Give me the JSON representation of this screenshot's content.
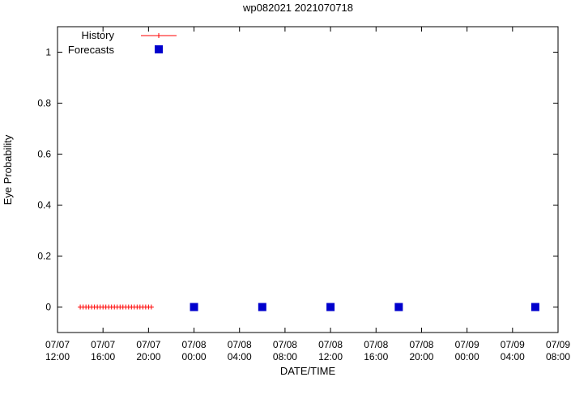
{
  "window": {
    "title": "wp082021 2021070718"
  },
  "chart_data": {
    "type": "scatter",
    "title": "wp082021 2021070718",
    "xlabel": "DATE/TIME",
    "ylabel": "Eye Probability",
    "grid": false,
    "legend_position": "top-left-inside",
    "x_axis": {
      "start": "07/07 12:00",
      "end": "07/09 08:00",
      "hours_range": [
        0,
        44
      ],
      "ticks": [
        {
          "hours": 0,
          "date": "07/07",
          "time": "12:00"
        },
        {
          "hours": 4,
          "date": "07/07",
          "time": "16:00"
        },
        {
          "hours": 8,
          "date": "07/07",
          "time": "20:00"
        },
        {
          "hours": 12,
          "date": "07/08",
          "time": "00:00"
        },
        {
          "hours": 16,
          "date": "07/08",
          "time": "04:00"
        },
        {
          "hours": 20,
          "date": "07/08",
          "time": "08:00"
        },
        {
          "hours": 24,
          "date": "07/08",
          "time": "12:00"
        },
        {
          "hours": 28,
          "date": "07/08",
          "time": "16:00"
        },
        {
          "hours": 32,
          "date": "07/08",
          "time": "20:00"
        },
        {
          "hours": 36,
          "date": "07/09",
          "time": "00:00"
        },
        {
          "hours": 40,
          "date": "07/09",
          "time": "04:00"
        },
        {
          "hours": 44,
          "date": "07/09",
          "time": "08:00"
        }
      ]
    },
    "y_axis": {
      "range": [
        -0.1,
        1.1
      ],
      "ticks": [
        {
          "value": 0,
          "label": "0"
        },
        {
          "value": 0.2,
          "label": "0.2"
        },
        {
          "value": 0.4,
          "label": "0.4"
        },
        {
          "value": 0.6,
          "label": "0.6"
        },
        {
          "value": 0.8,
          "label": "0.8"
        },
        {
          "value": 1,
          "label": "1"
        }
      ]
    },
    "series": [
      {
        "name": "History",
        "style": "linespoints",
        "marker": "plus",
        "color": "#ff0000",
        "points": [
          {
            "time": "07/07 14:00",
            "hours": 2.0,
            "value": 0
          },
          {
            "time": "07/07 14:15",
            "hours": 2.25,
            "value": 0
          },
          {
            "time": "07/07 14:30",
            "hours": 2.5,
            "value": 0
          },
          {
            "time": "07/07 14:45",
            "hours": 2.75,
            "value": 0
          },
          {
            "time": "07/07 15:00",
            "hours": 3.0,
            "value": 0
          },
          {
            "time": "07/07 15:15",
            "hours": 3.25,
            "value": 0
          },
          {
            "time": "07/07 15:30",
            "hours": 3.5,
            "value": 0
          },
          {
            "time": "07/07 15:45",
            "hours": 3.75,
            "value": 0
          },
          {
            "time": "07/07 16:00",
            "hours": 4.0,
            "value": 0
          },
          {
            "time": "07/07 16:15",
            "hours": 4.25,
            "value": 0
          },
          {
            "time": "07/07 16:30",
            "hours": 4.5,
            "value": 0
          },
          {
            "time": "07/07 16:45",
            "hours": 4.75,
            "value": 0
          },
          {
            "time": "07/07 17:00",
            "hours": 5.0,
            "value": 0
          },
          {
            "time": "07/07 17:15",
            "hours": 5.25,
            "value": 0
          },
          {
            "time": "07/07 17:30",
            "hours": 5.5,
            "value": 0
          },
          {
            "time": "07/07 17:45",
            "hours": 5.75,
            "value": 0
          },
          {
            "time": "07/07 18:00",
            "hours": 6.0,
            "value": 0
          },
          {
            "time": "07/07 18:15",
            "hours": 6.25,
            "value": 0
          },
          {
            "time": "07/07 18:30",
            "hours": 6.5,
            "value": 0
          },
          {
            "time": "07/07 18:45",
            "hours": 6.75,
            "value": 0
          },
          {
            "time": "07/07 19:00",
            "hours": 7.0,
            "value": 0
          },
          {
            "time": "07/07 19:15",
            "hours": 7.25,
            "value": 0
          },
          {
            "time": "07/07 19:30",
            "hours": 7.5,
            "value": 0
          },
          {
            "time": "07/07 19:45",
            "hours": 7.75,
            "value": 0
          },
          {
            "time": "07/07 20:00",
            "hours": 8.0,
            "value": 0
          },
          {
            "time": "07/07 20:15",
            "hours": 8.25,
            "value": 0
          }
        ]
      },
      {
        "name": "Forecasts",
        "style": "points",
        "marker": "filled-square",
        "color": "#0000cd",
        "points": [
          {
            "time": "07/08 00:00",
            "hours": 12,
            "value": 0
          },
          {
            "time": "07/08 06:00",
            "hours": 18,
            "value": 0
          },
          {
            "time": "07/08 12:00",
            "hours": 24,
            "value": 0
          },
          {
            "time": "07/08 18:00",
            "hours": 30,
            "value": 0
          },
          {
            "time": "07/09 06:00",
            "hours": 42,
            "value": 0
          }
        ]
      }
    ]
  }
}
